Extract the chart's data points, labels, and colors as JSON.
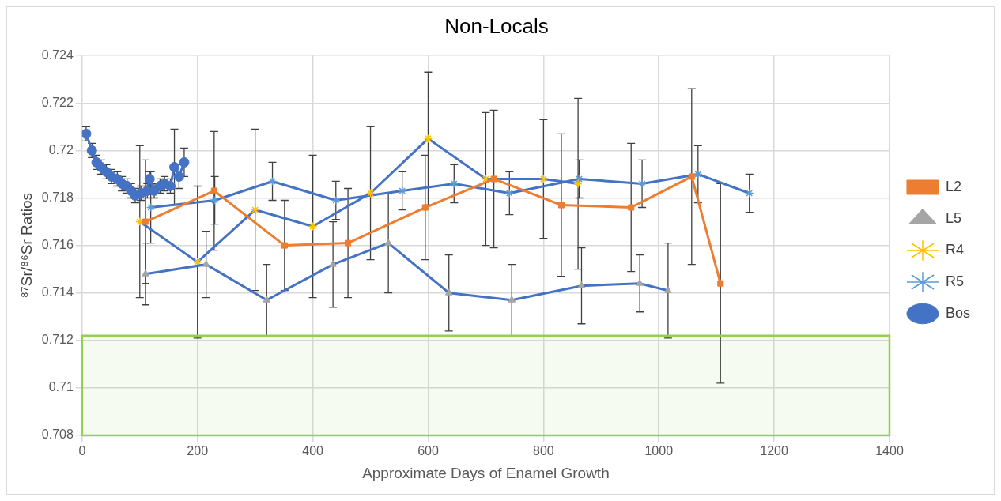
{
  "chart_data": {
    "type": "line",
    "title": "Non-Locals",
    "xlabel": "Approximate Days of Enamel Growth",
    "ylabel": "⁸⁷Sr/⁸⁶Sr Ratios",
    "xlim": [
      0,
      1400
    ],
    "xticks": [
      0,
      200,
      400,
      600,
      800,
      1000,
      1200,
      1400
    ],
    "ylim": [
      0.708,
      0.724
    ],
    "yticks": [
      0.708,
      0.71,
      0.712,
      0.714,
      0.716,
      0.718,
      0.72,
      0.722,
      0.724
    ],
    "grid": true,
    "legend": "right",
    "bands": [
      {
        "axis": "y",
        "from": 0.708,
        "to": 0.7122,
        "color": "#92d050"
      }
    ],
    "series": [
      {
        "name": "L2",
        "color": "#ed7d31",
        "marker": "square",
        "x": [
          110,
          229,
          351,
          461,
          595,
          714,
          831,
          952,
          1057,
          1107
        ],
        "values": [
          0.717,
          0.7183,
          0.716,
          0.7161,
          0.7176,
          0.7188,
          0.7177,
          0.7176,
          0.7189,
          0.7144
        ],
        "errors": [
          0.0026,
          0.0025,
          0.0019,
          0.0023,
          0.0022,
          0.0029,
          0.003,
          0.0027,
          0.0037,
          0.0042
        ]
      },
      {
        "name": "L5",
        "color": "#4472c4",
        "colors": [
          "#a5a5a5",
          "#a5a5a5",
          "#a5a5a5",
          "#a5a5a5",
          "#a5a5a5",
          "#a5a5a5",
          "#a5a5a5",
          "#a5a5a5",
          "#a5a5a5",
          "#a5a5a5"
        ],
        "marker": "triangle",
        "x": [
          110,
          215,
          320,
          435,
          531,
          636,
          745,
          866,
          967,
          1016
        ],
        "values": [
          0.7148,
          0.7152,
          0.7137,
          0.7152,
          0.7161,
          0.714,
          0.7137,
          0.7143,
          0.7144,
          0.7141
        ],
        "errors": [
          0.0013,
          0.0014,
          0.0015,
          0.0018,
          0.0021,
          0.0016,
          0.0015,
          0.0016,
          0.0012,
          0.002
        ]
      },
      {
        "name": "R4",
        "color": "#4472c4",
        "colors": [
          "#ffc000",
          "#ffc000",
          "#ffc000",
          "#ffc000",
          "#ffc000",
          "#ffc000",
          "#ffc000",
          "#ffc000",
          "#ffc000"
        ],
        "marker": "cross",
        "x": [
          100,
          200,
          300,
          400,
          500,
          600,
          700,
          800,
          860
        ],
        "values": [
          0.717,
          0.7153,
          0.7175,
          0.7168,
          0.7182,
          0.7205,
          0.7188,
          0.7188,
          0.7186
        ],
        "errors": [
          0.0032,
          0.0032,
          0.0034,
          0.003,
          0.0028,
          0.0028,
          0.0028,
          0.0025,
          0.0036
        ]
      },
      {
        "name": "R5",
        "color": "#4472c4",
        "colors": [
          "#5b9bd5",
          "#5b9bd5",
          "#5b9bd5",
          "#5b9bd5",
          "#5b9bd5",
          "#5b9bd5",
          "#5b9bd5",
          "#5b9bd5",
          "#5b9bd5",
          "#5b9bd5",
          "#5b9bd5"
        ],
        "marker": "cross",
        "x": [
          119,
          230,
          330,
          440,
          555,
          645,
          741,
          862,
          971,
          1068,
          1157
        ],
        "values": [
          0.7176,
          0.7179,
          0.7187,
          0.7179,
          0.7183,
          0.7186,
          0.7182,
          0.7188,
          0.7186,
          0.719,
          0.7182
        ],
        "errors": [
          0.0015,
          0.001,
          0.0008,
          0.0008,
          0.0008,
          0.0008,
          0.0009,
          0.0008,
          0.001,
          0.0012,
          0.0008
        ]
      },
      {
        "name": "Bos",
        "color": "#4472c4",
        "marker": "circle",
        "x": [
          7,
          17,
          25,
          33,
          42,
          51,
          61,
          69,
          78,
          85,
          92,
          102,
          113,
          117,
          125,
          135,
          143,
          153,
          160,
          168,
          177
        ],
        "values": [
          0.7207,
          0.72,
          0.7195,
          0.7193,
          0.7191,
          0.7189,
          0.7188,
          0.7186,
          0.7185,
          0.7183,
          0.7181,
          0.7182,
          0.7183,
          0.7188,
          0.7183,
          0.7185,
          0.7186,
          0.7185,
          0.7193,
          0.7189,
          0.7195
        ],
        "errors": [
          0.0003,
          0.0003,
          0.0003,
          0.0003,
          0.0003,
          0.0003,
          0.0003,
          0.0003,
          0.0003,
          0.0003,
          0.0003,
          0.0003,
          0.0003,
          0.0003,
          0.0003,
          0.0003,
          0.0003,
          0.0003,
          0.0016,
          0.0005,
          0.0006
        ]
      }
    ]
  }
}
